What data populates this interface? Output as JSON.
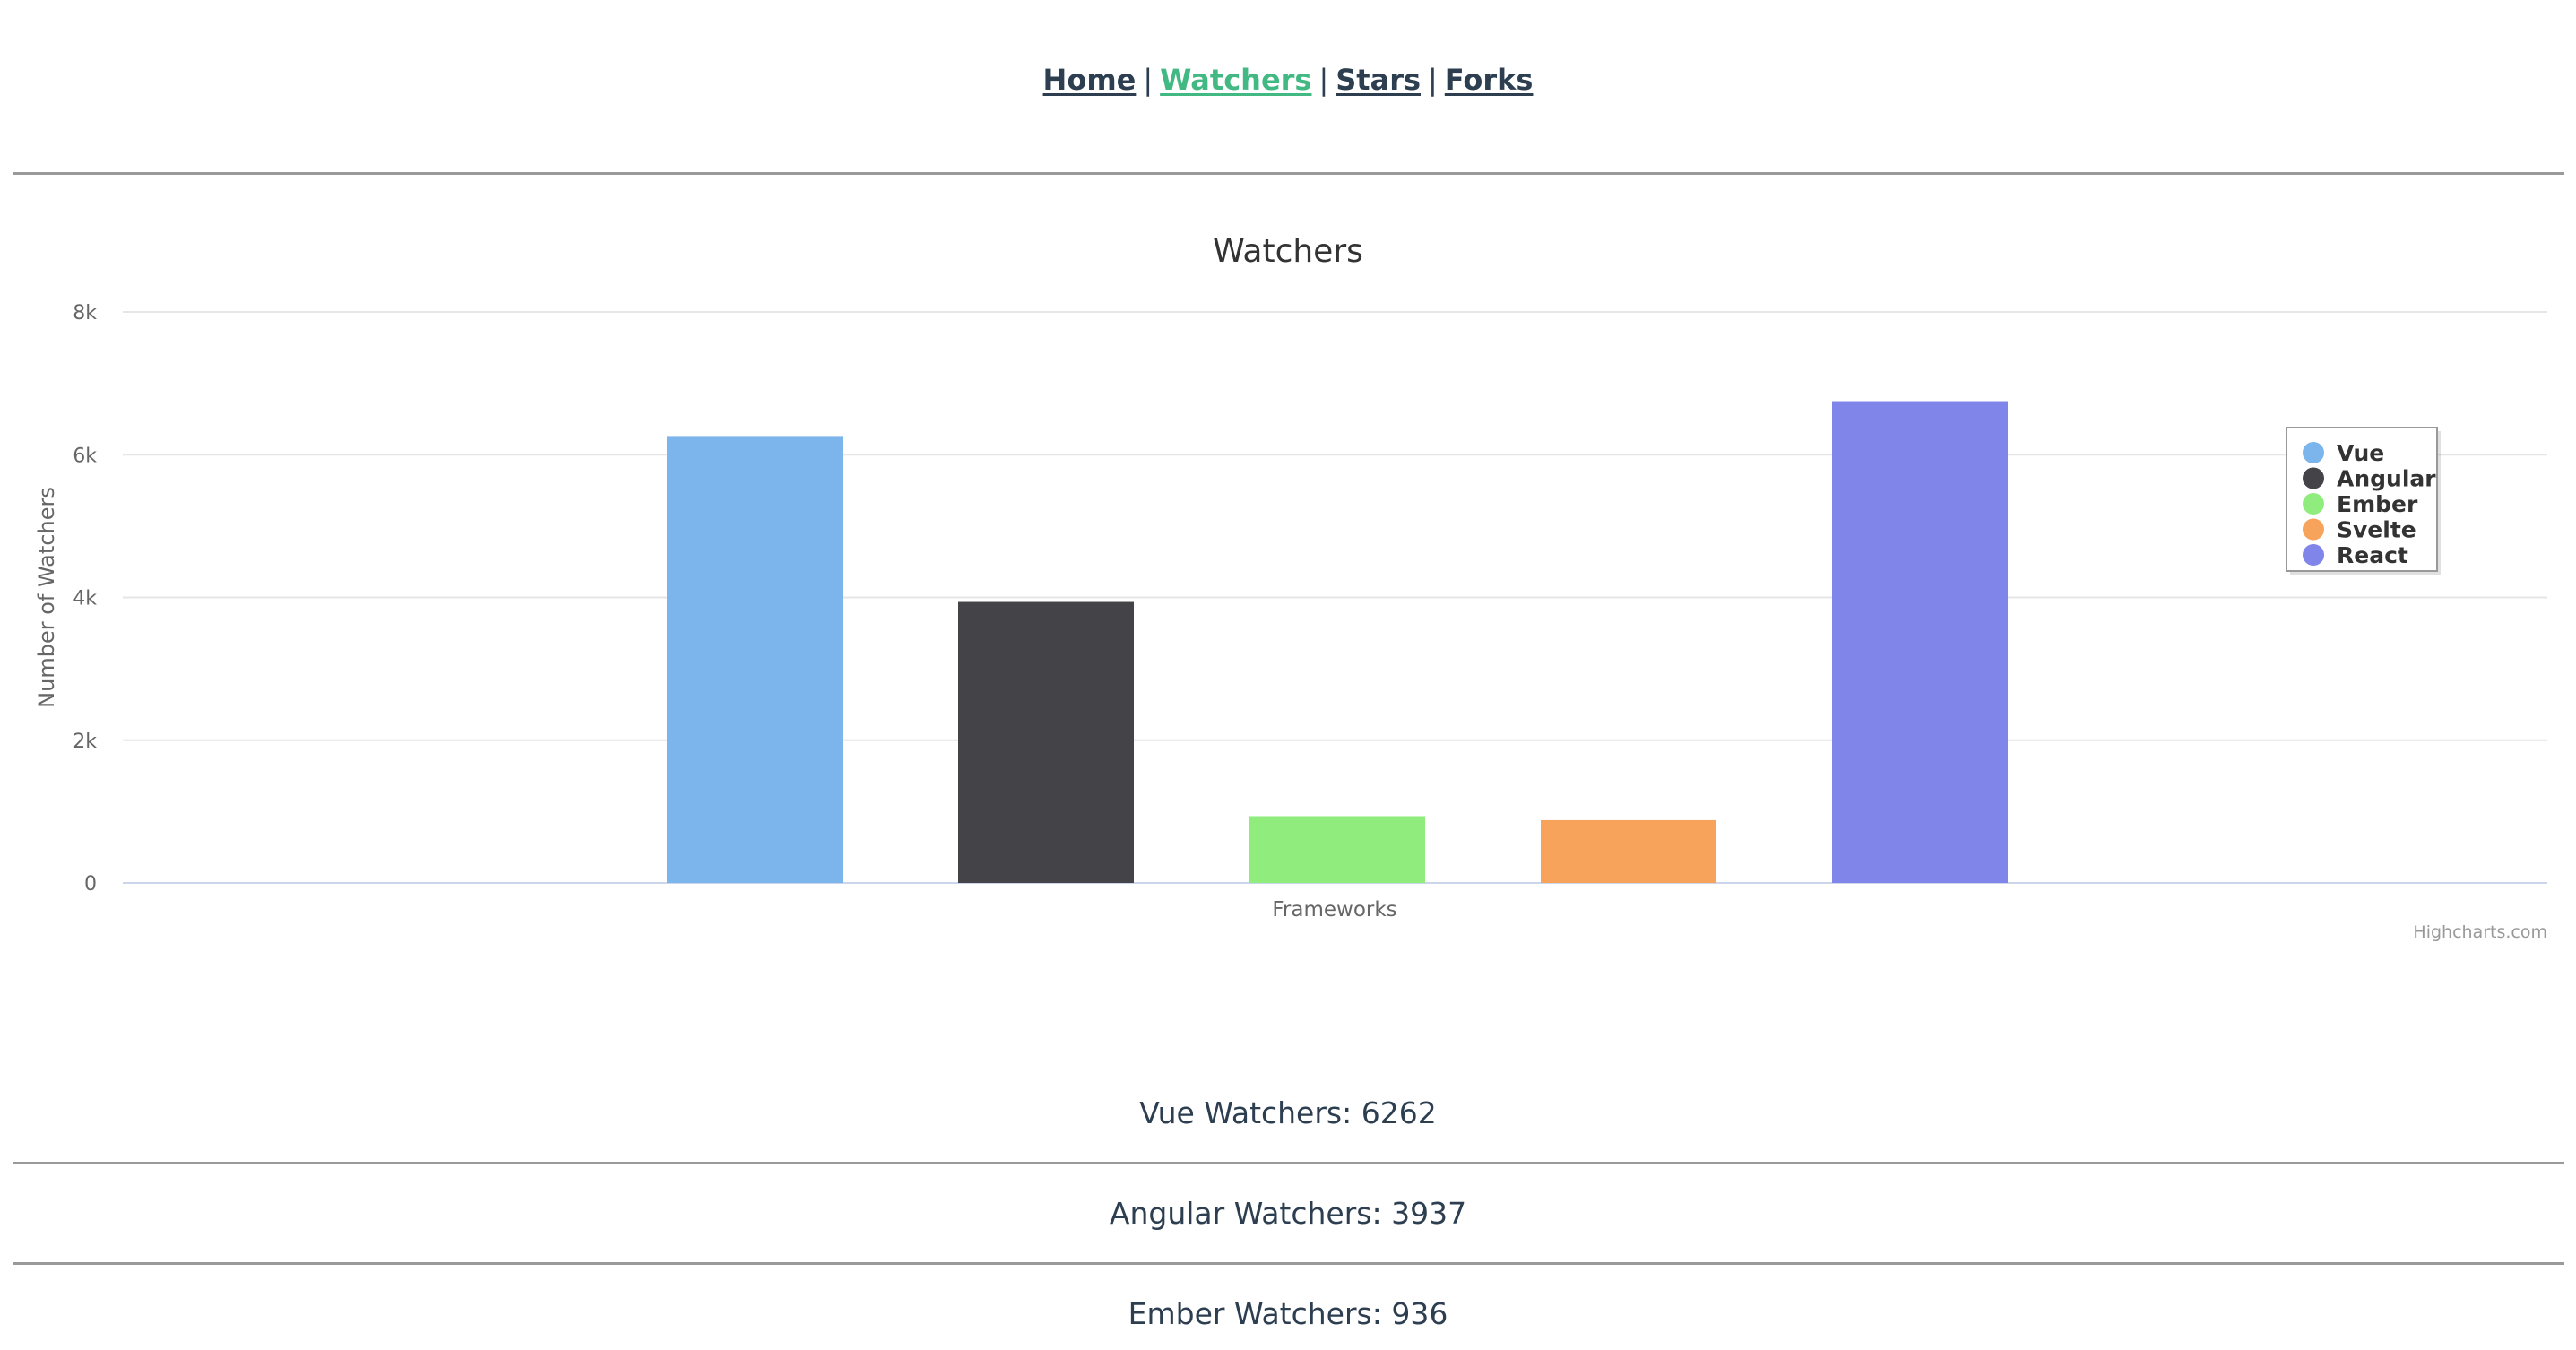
{
  "nav": {
    "items": [
      {
        "label": "Home",
        "active": false
      },
      {
        "label": "Watchers",
        "active": true
      },
      {
        "label": "Stars",
        "active": false
      },
      {
        "label": "Forks",
        "active": false
      }
    ],
    "separator": "|"
  },
  "chart_data": {
    "type": "bar",
    "title": "Watchers",
    "xlabel": "Frameworks",
    "ylabel": "Number of Watchers",
    "ylim": [
      0,
      8000
    ],
    "yticks": [
      0,
      2000,
      4000,
      6000,
      8000
    ],
    "ytick_labels": [
      "0",
      "2k",
      "4k",
      "6k",
      "8k"
    ],
    "grid": true,
    "legend_position": "right",
    "credits": "Highcharts.com",
    "series": [
      {
        "name": "Vue",
        "value": 6262,
        "color": "#7cb5ec"
      },
      {
        "name": "Angular",
        "value": 3937,
        "color": "#434348"
      },
      {
        "name": "Ember",
        "value": 936,
        "color": "#90ed7d"
      },
      {
        "name": "Svelte",
        "value": 880,
        "color": "#f7a35c"
      },
      {
        "name": "React",
        "value": 6750,
        "color": "#8085e9"
      }
    ]
  },
  "stats": [
    {
      "label": "Vue Watchers: 6262"
    },
    {
      "label": "Angular Watchers: 3937"
    },
    {
      "label": "Ember Watchers: 936"
    }
  ]
}
